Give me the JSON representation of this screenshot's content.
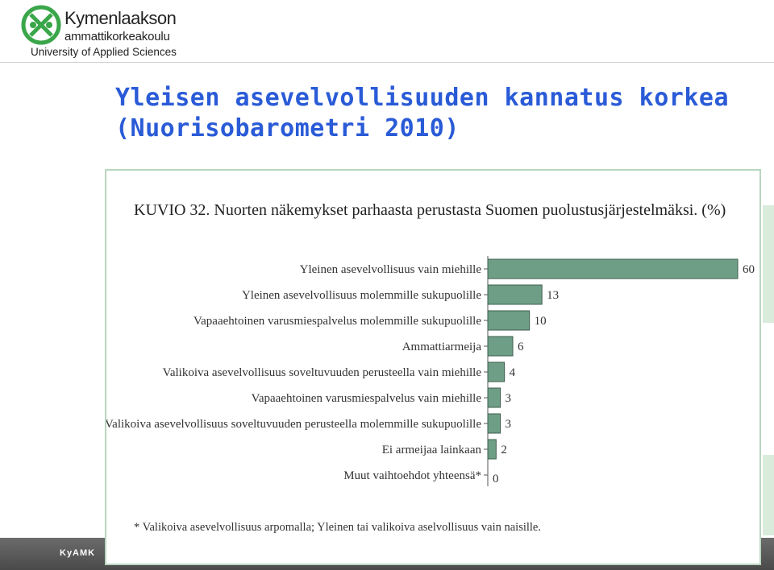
{
  "header": {
    "logo_name": "Kymenlaakson",
    "logo_sub": "ammattikorkeakoulu",
    "logo_uas": "University of Applied Sciences"
  },
  "slide": {
    "title_line1": "Yleisen asevelvollisuuden kannatus korkea",
    "title_line2": "(Nuorisobarometri 2010)"
  },
  "footer": {
    "text": "KyAMK"
  },
  "colors": {
    "title": "#2a5bd7",
    "bar_fill": "#6f9e86",
    "bar_stroke": "#3d5d4d",
    "logo_green": "#3aa64a"
  },
  "chart_data": {
    "type": "bar",
    "orientation": "horizontal",
    "title": "KUVIO 32. Nuorten näkemykset parhaasta perustasta Suomen puolustusjärjestelmäksi. (%)",
    "categories": [
      "Yleinen asevelvollisuus vain miehille",
      "Yleinen asevelvollisuus molemmille sukupuolille",
      "Vapaaehtoinen varusmiespalvelus molemmille sukupuolille",
      "Ammattiarmeija",
      "Valikoiva asevelvollisuus soveltuvuuden perusteella vain miehille",
      "Vapaaehtoinen varusmiespalvelus vain miehille",
      "Valikoiva asevelvollisuus soveltuvuuden perusteella molemmille sukupuolille",
      "Ei armeijaa lainkaan",
      "Muut vaihtoehdot yhteensä*"
    ],
    "values": [
      60,
      13,
      10,
      6,
      4,
      3,
      3,
      2,
      0
    ],
    "xlim": [
      0,
      60
    ],
    "grid": false,
    "footnote": "* Valikoiva asevelvollisuus arpomalla;  Yleinen tai valikoiva aselvollisuus  vain naisille."
  }
}
